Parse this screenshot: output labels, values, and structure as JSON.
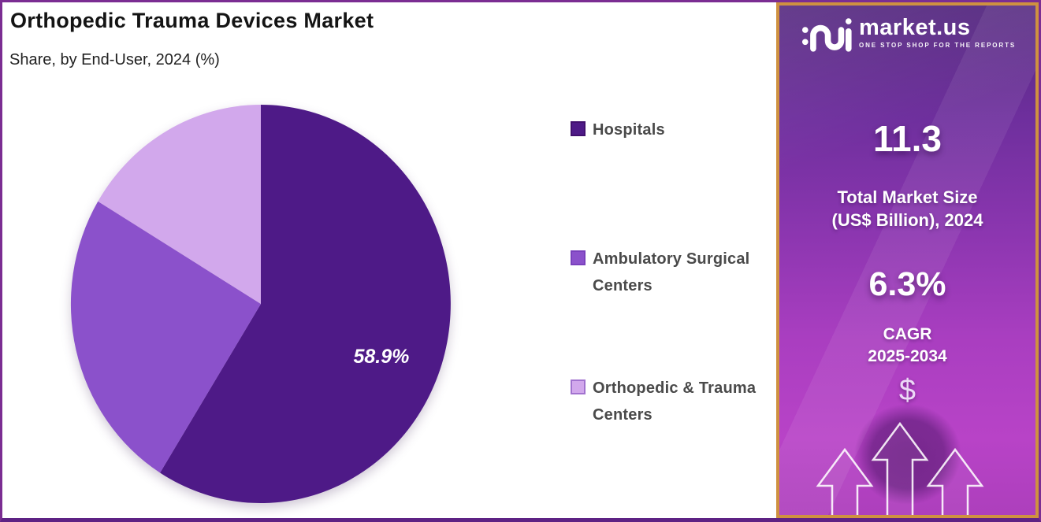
{
  "header": {
    "title": "Orthopedic Trauma Devices Market",
    "subtitle": "Share, by End-User, 2024 (%)"
  },
  "chart_data": {
    "type": "pie",
    "title": "Orthopedic Trauma Devices Market Share, by End-User, 2024 (%)",
    "categories": [
      "Hospitals",
      "Ambulatory Surgical Centers",
      "Orthopedic & Trauma Centers"
    ],
    "values": [
      58.9,
      24.7,
      16.4
    ],
    "unit": "%",
    "colors": [
      "#4e1a87",
      "#8b51cb",
      "#d2a8ec"
    ],
    "swatch_border_colors": [
      "#41106e",
      "#7a41bd",
      "#a273cf"
    ],
    "start_angle_deg": 0,
    "direction": "clockwise",
    "legend_position": "right",
    "data_label": {
      "slice_index": 0,
      "text": "58.9%",
      "angle_deg": 115,
      "radius_frac": 0.7
    }
  },
  "sidebar": {
    "logo_text": "market.us",
    "logo_tagline": "ONE STOP SHOP FOR THE REPORTS",
    "market_size_value": "11.3",
    "market_size_label_line1": "Total Market Size",
    "market_size_label_line2": "(US$ Billion), 2024",
    "cagr_value": "6.3%",
    "cagr_label": "CAGR",
    "cagr_period": "2025-2034",
    "dollar_symbol": "$"
  },
  "colors": {
    "frame_border": "#7b2d92",
    "frame_border_bottom": "#5e2284",
    "sidebar_border": "#cf9140",
    "sidebar_gradient_top": "#54287f",
    "sidebar_gradient_bottom": "#b843c7",
    "title_text": "#141414",
    "legend_text": "#4a4a4a",
    "pie_label_text": "#ffffff"
  }
}
